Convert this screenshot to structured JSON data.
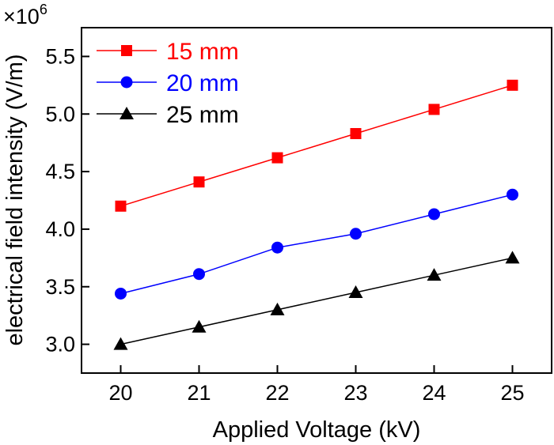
{
  "chart_data": {
    "type": "line",
    "xlabel": "Applied Voltage (kV)",
    "ylabel": "electrical field intensity (V/m)",
    "y_multiplier": {
      "base": "×10",
      "exponent": "6"
    },
    "xlim": [
      19.5,
      25.5
    ],
    "ylim": [
      2.75,
      5.75
    ],
    "x_ticks": [
      "20",
      "21",
      "22",
      "23",
      "24",
      "25"
    ],
    "x_tick_values": [
      20,
      21,
      22,
      23,
      24,
      25
    ],
    "y_ticks": [
      "3.0",
      "3.5",
      "4.0",
      "4.5",
      "5.0",
      "5.5"
    ],
    "y_tick_values": [
      3.0,
      3.5,
      4.0,
      4.5,
      5.0,
      5.5
    ],
    "grid": false,
    "legend_position": "top-left",
    "x": [
      20,
      21,
      22,
      23,
      24,
      25
    ],
    "series": [
      {
        "name": "15 mm",
        "color": "#ff0000",
        "marker": "square",
        "values": [
          4.2,
          4.41,
          4.62,
          4.83,
          5.04,
          5.25
        ]
      },
      {
        "name": "20 mm",
        "color": "#0000ff",
        "marker": "circle",
        "values": [
          3.44,
          3.61,
          3.84,
          3.96,
          4.13,
          4.3
        ]
      },
      {
        "name": "25 mm",
        "color": "#000000",
        "marker": "triangle",
        "values": [
          3.0,
          3.15,
          3.3,
          3.45,
          3.6,
          3.75
        ]
      }
    ]
  }
}
